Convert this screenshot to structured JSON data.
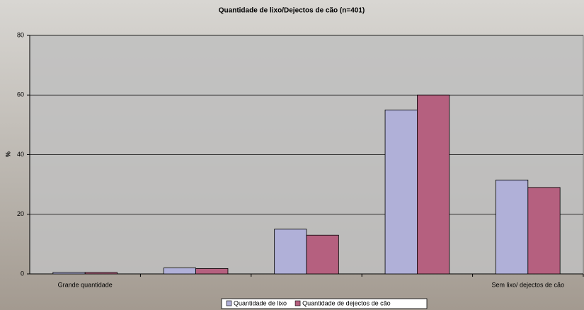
{
  "chart_data": {
    "type": "bar",
    "title": "Quantidade de lixo/Dejectos de cão (n=401)",
    "y_label": "%",
    "categories": [
      "Grande quantidade",
      null,
      null,
      null,
      "Sem lixo/ dejectos de cão"
    ],
    "series": [
      {
        "name": "Quantidade de lixo",
        "color": "#b0b0d8",
        "values": [
          0.5,
          2,
          15,
          55,
          31.5
        ]
      },
      {
        "name": "Quantidade de dejectos de cão",
        "color": "#b5607f",
        "values": [
          0.5,
          1.8,
          13,
          60,
          29
        ]
      }
    ],
    "ylim": [
      0,
      80
    ],
    "yticks": [
      0,
      20,
      40,
      60,
      80
    ],
    "grid": true,
    "legend": "bottom"
  }
}
